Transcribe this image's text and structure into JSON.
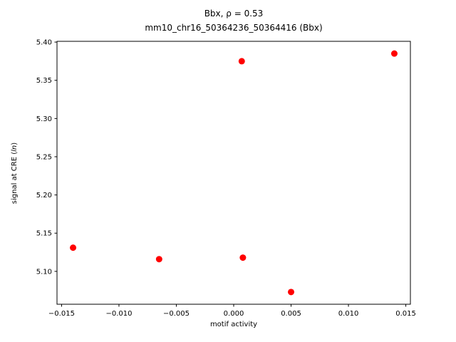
{
  "chart_data": {
    "type": "scatter",
    "title_line1": "Bbx, ρ = 0.53",
    "title_line2": "mm10_chr16_50364236_50364416 (Bbx)",
    "title": "Bbx, ρ = 0.53\nmm10_chr16_50364236_50364416 (Bbx)",
    "xlabel": "motif activity",
    "ylabel": "signal at CRE (ln)",
    "ylabel_parts": {
      "prefix": "signal at CRE (",
      "em": "ln",
      "suffix": ")"
    },
    "marker_color": "#ff0000",
    "marker_radius": 4.5,
    "grid": false,
    "legend": "none",
    "xlim": [
      -0.0154,
      0.0154
    ],
    "ylim": [
      5.057,
      5.401
    ],
    "xticks": [
      -0.015,
      -0.01,
      -0.005,
      0.0,
      0.005,
      0.01,
      0.015
    ],
    "xtick_labels": [
      "−0.015",
      "−0.010",
      "−0.005",
      "0.000",
      "0.005",
      "0.010",
      "0.015"
    ],
    "yticks": [
      5.1,
      5.15,
      5.2,
      5.25,
      5.3,
      5.35,
      5.4
    ],
    "ytick_labels": [
      "5.10",
      "5.15",
      "5.20",
      "5.25",
      "5.30",
      "5.35",
      "5.40"
    ],
    "points": [
      [
        -0.014,
        5.131
      ],
      [
        -0.0065,
        5.116
      ],
      [
        0.0007,
        5.375
      ],
      [
        0.0008,
        5.118
      ],
      [
        0.005,
        5.073
      ],
      [
        0.014,
        5.385
      ]
    ]
  }
}
